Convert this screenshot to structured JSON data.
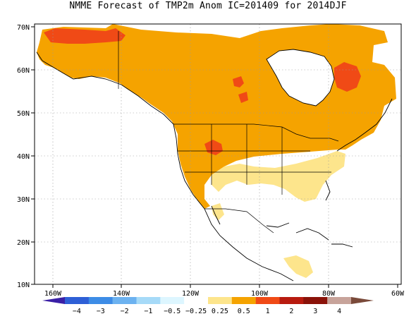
{
  "title": "NMME Forecast of TMP2m Anom  IC=201409 for 2014DJF",
  "map": {
    "lon_range": [
      -170,
      -60
    ],
    "lat_range": [
      10,
      72
    ],
    "grid": true,
    "x_ticks": [
      "160W",
      "140W",
      "120W",
      "100W",
      "80W",
      "60W"
    ],
    "y_ticks": [
      "10N",
      "20N",
      "30N",
      "40N",
      "50N",
      "60N",
      "70N"
    ]
  },
  "colorbar": {
    "labels": [
      "−4",
      "−3",
      "−2",
      "−1",
      "−0.5",
      "−0.25",
      "0.25",
      "0.5",
      "1",
      "2",
      "3",
      "4"
    ],
    "colors": [
      "#3a1fa6",
      "#2e5fd6",
      "#3d8ce6",
      "#6cb2f0",
      "#a6daf8",
      "#ddf6ff",
      "#ffffff",
      "#fde58c",
      "#f5a300",
      "#f04a16",
      "#b81b0f",
      "#8a1209",
      "#c7a39a",
      "#7a4a3a"
    ]
  }
}
